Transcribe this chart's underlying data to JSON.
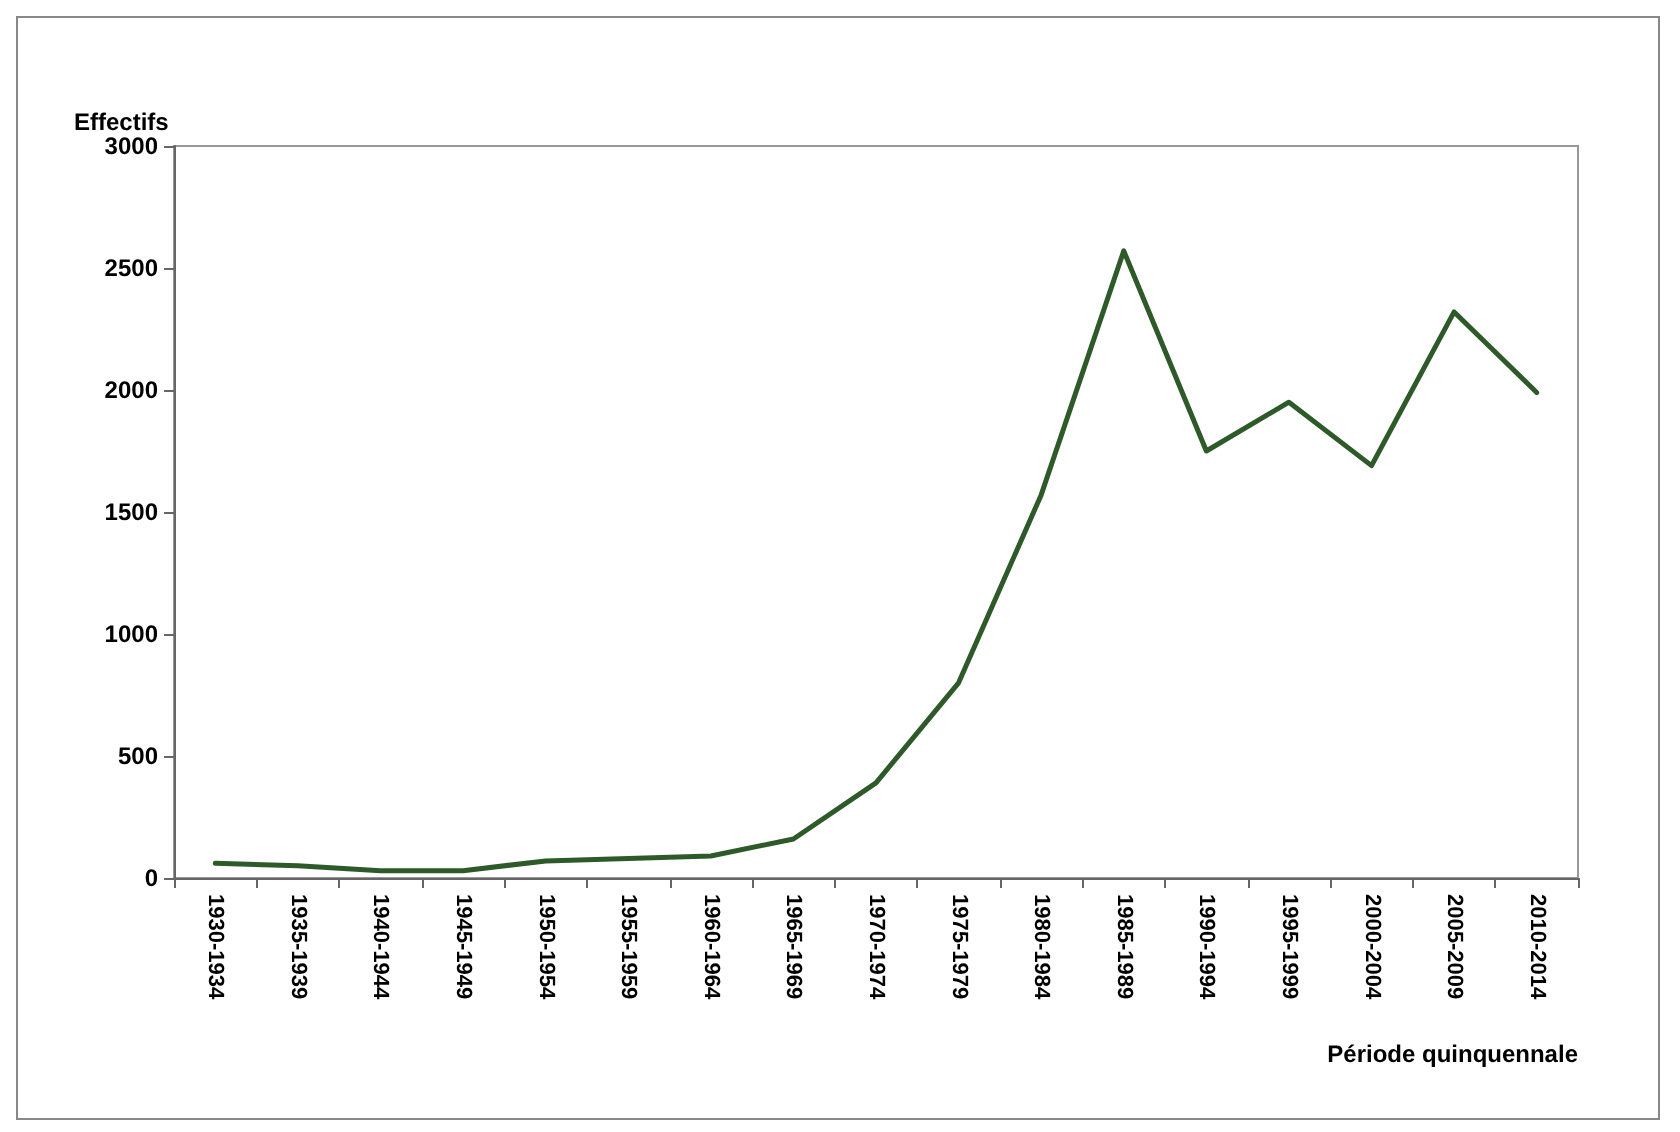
{
  "chart_data": {
    "type": "line",
    "ylabel": "Effectifs",
    "xlabel": "Période quinquennale",
    "categories": [
      "1930-1934",
      "1935-1939",
      "1940-1944",
      "1945-1949",
      "1950-1954",
      "1955-1959",
      "1960-1964",
      "1965-1969",
      "1970-1974",
      "1975-1979",
      "1980-1984",
      "1985-1989",
      "1990-1994",
      "1995-1999",
      "2000-2004",
      "2005-2009",
      "2010-2014"
    ],
    "series": [
      {
        "color": "#2e5a2a",
        "values": [
          60,
          50,
          30,
          30,
          70,
          80,
          90,
          160,
          390,
          800,
          1570,
          2570,
          1750,
          1950,
          1690,
          2320,
          1990
        ]
      }
    ],
    "ylim": [
      0,
      3000
    ],
    "yticks": [
      0,
      500,
      1000,
      1500,
      2000,
      2500,
      3000
    ],
    "grid": false,
    "marker": "none",
    "line_style": "solid"
  }
}
